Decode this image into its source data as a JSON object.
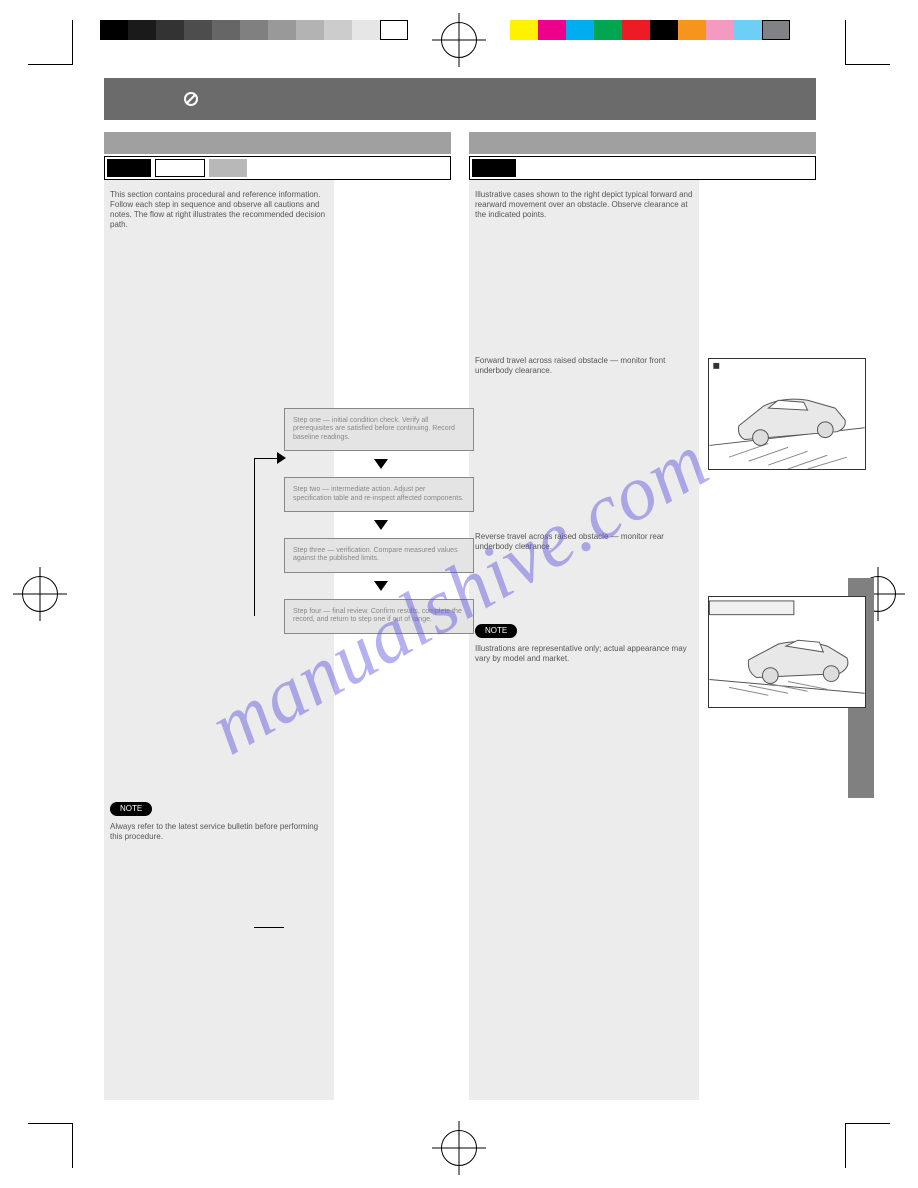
{
  "watermark_text": "manualshive.com",
  "grayscale_swatches": [
    "#000000",
    "#1a1a1a",
    "#333333",
    "#4d4d4d",
    "#666666",
    "#808080",
    "#999999",
    "#b3b3b3",
    "#cccccc",
    "#e6e6e6",
    "#ffffff"
  ],
  "color_swatches": [
    "#fff200",
    "#ec008c",
    "#00aeef",
    "#00a651",
    "#ed1c24",
    "#000000",
    "#f7941d",
    "#f49ac1",
    "#6dcff6",
    "#808285"
  ],
  "header": {
    "bg_color": "#6b6b6b"
  },
  "left": {
    "intro": "This section contains procedural and reference information. Follow each step in sequence and observe all cautions and notes. The flow at right illustrates the recommended decision path.",
    "flow": {
      "box1": "Step one — initial condition check. Verify all prerequisites are satisfied before continuing. Record baseline readings.",
      "box2": "Step two — intermediate action. Adjust per specification table and re-inspect affected components.",
      "box3": "Step three — verification. Compare measured values against the published limits.",
      "box4": "Step four — final review. Confirm results, complete the record, and return to step one if out of range."
    },
    "note_label": "NOTE",
    "note_text": "Always refer to the latest service bulletin before performing this procedure."
  },
  "right": {
    "intro": "Illustrative cases shown to the right depict typical forward and rearward movement over an obstacle. Observe clearance at the indicated points.",
    "caption1": "Forward travel across raised obstacle — monitor front underbody clearance.",
    "caption2": "Reverse travel across raised obstacle — monitor rear underbody clearance.",
    "note_label": "NOTE",
    "note_text": "Illustrations are representative only; actual appearance may vary by model and market."
  },
  "illustration_stroke": "#555555",
  "illustration_fill": "#e8e8e8"
}
